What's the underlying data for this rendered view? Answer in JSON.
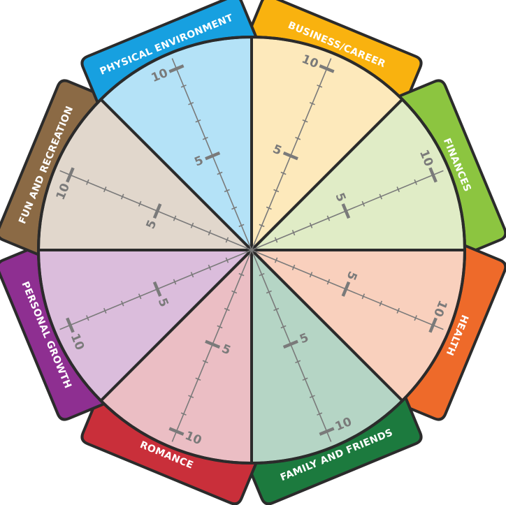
{
  "wheel": {
    "scale_labels": {
      "mid": "5",
      "max": "10"
    },
    "scale_max": 10,
    "border_color": "#2b2b2b",
    "axis_color": "#7a7a7a",
    "sectors": [
      {
        "label": "BUSINESS/CAREER",
        "fill": "#fde9bb",
        "tab": "#f9b20f"
      },
      {
        "label": "FINANCES",
        "fill": "#e0ecc6",
        "tab": "#8cc540"
      },
      {
        "label": "HEALTH",
        "fill": "#f9d0bd",
        "tab": "#ee6a2a"
      },
      {
        "label": "FAMILY AND FRIENDS",
        "fill": "#b5d5c5",
        "tab": "#1c7a3e"
      },
      {
        "label": "ROMANCE",
        "fill": "#ebbec4",
        "tab": "#c92f3a"
      },
      {
        "label": "PERSONAL GROWTH",
        "fill": "#dbbddc",
        "tab": "#8e2f91"
      },
      {
        "label": "FUN AND RECREATION",
        "fill": "#e1d7cc",
        "tab": "#8b6a45"
      },
      {
        "label": "PHYSICAL ENVIRONMENT",
        "fill": "#b4e2f7",
        "tab": "#17a0e0"
      }
    ]
  }
}
